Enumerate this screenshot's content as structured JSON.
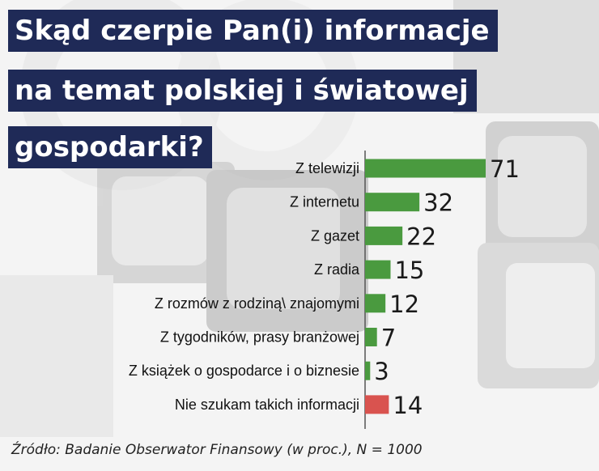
{
  "title_lines": [
    "Skąd czerpie Pan(i) informacje",
    "na temat polskiej i światowej",
    "gospodarki?"
  ],
  "source": "Źródło: Badanie Obserwator Finansowy (w  proc.), N = 1000",
  "colors": {
    "title_bg": "#1f2a57",
    "bar_default": "#4a9a3f",
    "bar_highlight": "#d9534f"
  },
  "chart_data": {
    "type": "bar",
    "orientation": "horizontal",
    "title": "Skąd czerpie Pan(i) informacje na temat polskiej i światowej gospodarki?",
    "categories": [
      "Z telewizji",
      "Z internetu",
      "Z gazet",
      "Z radia",
      "Z rozmów z rodziną\\ znajomymi",
      "Z tygodników, prasy branżowej",
      "Z książek o gospodarce i o biznesie",
      "Nie szukam takich informacji"
    ],
    "values": [
      71,
      32,
      22,
      15,
      12,
      7,
      3,
      14
    ],
    "bar_colors": [
      "green",
      "green",
      "green",
      "green",
      "green",
      "green",
      "green",
      "red"
    ],
    "xlim": [
      0,
      71
    ],
    "grid": false,
    "legend": "none"
  }
}
